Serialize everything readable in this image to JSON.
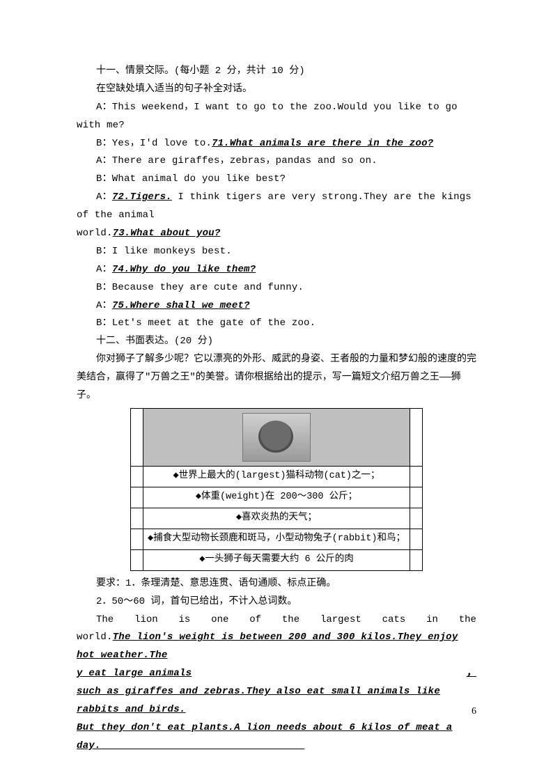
{
  "section11": {
    "title": "十一、情景交际。(每小题 2 分，共计 10 分)",
    "instruction": "在空缺处填入适当的句子补全对话。",
    "lines": {
      "a1": "A：This weekend，I want to go to the zoo.Would you like to go with me?",
      "b1_pre": "B：Yes，I'd love to.",
      "b1_ans": "71.What animals are there in the zoo?",
      "a2": "A：There are giraffes，zebras，pandas and so on.",
      "b2": "B：What animal do you like best?",
      "a3_pre": "A：",
      "a3_ans": "72.Tigers.",
      "a3_post": " I think tigers are very strong.They are the kings of the animal ",
      "a3_wrap": "world.",
      "a3_ans2": "73.What about you?",
      "b3": "B：I like monkeys best.",
      "a4_pre": "A：",
      "a4_ans": "74.Why do you like them?",
      "b4": "B：Because they are cute and funny.",
      "a5_pre": "A：",
      "a5_ans": "75.Where shall we meet?",
      "b5": "B：Let's meet at the gate of the zoo."
    }
  },
  "section12": {
    "title": "十二、书面表达。(20 分)",
    "prompt1": "你对狮子了解多少呢？它以漂亮的外形、威武的身姿、王者般的力量和梦幻般的速度的完美结合，赢得了\"万兽之王\"的美誉。请你根据给出的提示，写一篇短文介绍万兽之王——狮子。",
    "bullets": {
      "r1": "◆世界上最大的(largest)猫科动物(cat)之一；",
      "r2": "◆体重(weight)在 200～300 公斤；",
      "r3": "◆喜欢炎热的天气；",
      "r4": "◆捕食大型动物长颈鹿和斑马，小型动物兔子(rabbit)和鸟；",
      "r5": "◆一头狮子每天需要大约 6 公斤的肉"
    },
    "req1": "要求：1．条理清楚、意思连贯、语句通顺、标点正确。",
    "req2": "2．50～60 词，首句已给出，不计入总词数。",
    "stem_words": [
      "The",
      "lion",
      "is",
      "one",
      "of",
      "the",
      "largest",
      "cats",
      "in",
      "the"
    ],
    "ans1_pre": "world.",
    "ans1": "The lion's weight is between 200 and 300 kilos.They enjoy hot weather.The",
    "ans2": "y eat large animals ，",
    "ans3": " such as giraffes and zebras.They also eat small animals like rabbits and birds.",
    "ans4": "But they don't eat plants.A lion needs about 6 kilos of meat a day.",
    "ans4_blank": "                                  "
  },
  "page_number": "6"
}
